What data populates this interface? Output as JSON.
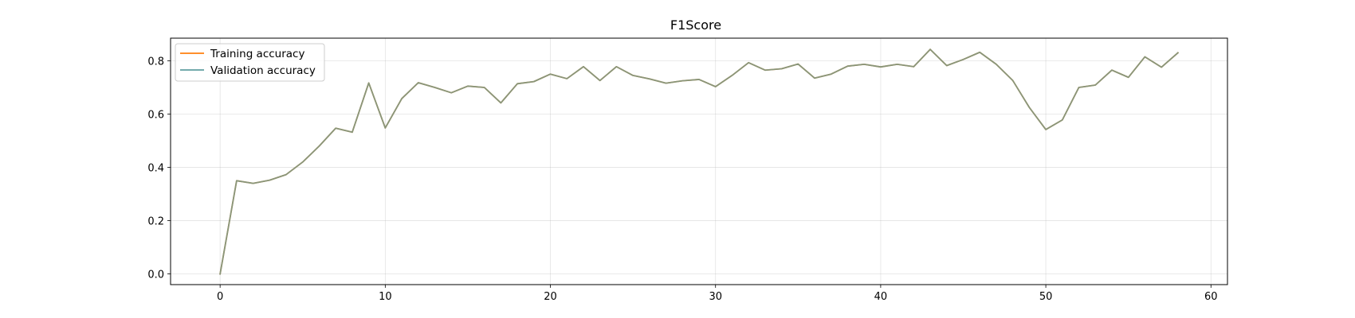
{
  "chart_data": {
    "type": "line",
    "title": "F1Score",
    "xlabel": "",
    "ylabel": "",
    "xlim": [
      -3,
      61
    ],
    "ylim": [
      -0.04,
      0.885
    ],
    "xticks": [
      "0",
      "10",
      "20",
      "30",
      "40",
      "50",
      "60"
    ],
    "yticks": [
      "0.0",
      "0.2",
      "0.4",
      "0.6",
      "0.8"
    ],
    "grid": true,
    "legend_position": "top-left",
    "x": [
      0,
      1,
      2,
      3,
      4,
      5,
      6,
      7,
      8,
      9,
      10,
      11,
      12,
      13,
      14,
      15,
      16,
      17,
      18,
      19,
      20,
      21,
      22,
      23,
      24,
      25,
      26,
      27,
      28,
      29,
      30,
      31,
      32,
      33,
      34,
      35,
      36,
      37,
      38,
      39,
      40,
      41,
      42,
      43,
      44,
      45,
      46,
      47,
      48,
      49,
      50,
      51,
      52,
      53,
      54,
      55,
      56,
      57,
      58
    ],
    "series": [
      {
        "name": "Training accuracy",
        "color": "#ff7f0e",
        "values": [
          0.0,
          0.35,
          0.34,
          0.352,
          0.373,
          0.42,
          0.48,
          0.547,
          0.532,
          0.717,
          0.548,
          0.658,
          0.718,
          0.7,
          0.68,
          0.705,
          0.7,
          0.642,
          0.714,
          0.722,
          0.75,
          0.733,
          0.778,
          0.726,
          0.778,
          0.745,
          0.732,
          0.716,
          0.725,
          0.73,
          0.703,
          0.745,
          0.793,
          0.765,
          0.77,
          0.788,
          0.735,
          0.75,
          0.78,
          0.787,
          0.777,
          0.787,
          0.778,
          0.843,
          0.782,
          0.805,
          0.832,
          0.787,
          0.726,
          0.625,
          0.542,
          0.578,
          0.7,
          0.709,
          0.765,
          0.738,
          0.815,
          0.776,
          0.83
        ]
      },
      {
        "name": "Validation accuracy",
        "color": "#5f9ea0",
        "values": [
          0.0,
          0.35,
          0.34,
          0.352,
          0.373,
          0.42,
          0.48,
          0.547,
          0.532,
          0.717,
          0.548,
          0.658,
          0.718,
          0.7,
          0.68,
          0.705,
          0.7,
          0.642,
          0.714,
          0.722,
          0.75,
          0.733,
          0.778,
          0.726,
          0.778,
          0.745,
          0.732,
          0.716,
          0.725,
          0.73,
          0.703,
          0.745,
          0.793,
          0.765,
          0.77,
          0.788,
          0.735,
          0.75,
          0.78,
          0.787,
          0.777,
          0.787,
          0.778,
          0.843,
          0.782,
          0.805,
          0.832,
          0.787,
          0.726,
          0.625,
          0.542,
          0.578,
          0.7,
          0.709,
          0.765,
          0.738,
          0.815,
          0.776,
          0.83
        ]
      }
    ]
  }
}
